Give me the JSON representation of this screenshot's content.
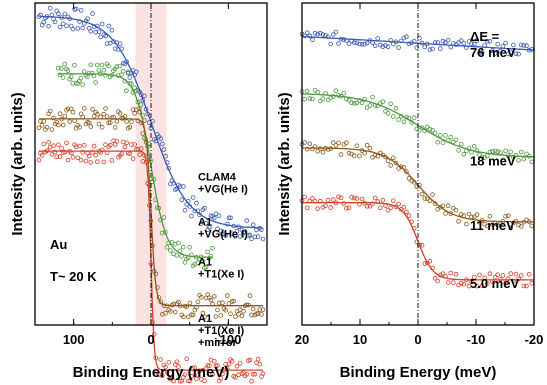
{
  "chart_data": [
    {
      "type": "scatter",
      "xlabel": "Binding Energy (meV)",
      "ylabel": "Intensity (arb. units)",
      "xlim": [
        150,
        -150
      ],
      "x_ticks": [
        "100",
        "0",
        "-100"
      ],
      "shaded_band": [
        20,
        -20
      ],
      "reference_line_x": 0,
      "annotations": [
        "Au",
        "T~ 20 K"
      ],
      "series": [
        {
          "name": "CLAM4\n+VG(He I)",
          "color": "#3b5bb5",
          "level_hi": 0.96,
          "level_lo": 0.3,
          "width": 24,
          "x_range": [
            145,
            -145
          ]
        },
        {
          "name": "A1\n+VG(He I)",
          "color": "#4e9a3e",
          "level_hi": 0.78,
          "level_lo": 0.21,
          "width": 10,
          "x_range": [
            120,
            -80
          ]
        },
        {
          "name": "A1\n+T1(Xe I)",
          "color": "#8b5a1e",
          "level_hi": 0.64,
          "level_lo": 0.06,
          "width": 3,
          "x_range": [
            145,
            -145
          ]
        },
        {
          "name": "A1\n+T1(Xe I)\n+mirror",
          "color": "#d6402b",
          "level_hi": 0.54,
          "level_lo": -0.14,
          "width": 2,
          "x_range": [
            145,
            -145
          ]
        }
      ]
    },
    {
      "type": "scatter",
      "xlabel": "Binding Energy (meV)",
      "ylabel": "Intensity (arb. units)",
      "xlim": [
        20,
        -20
      ],
      "x_ticks": [
        "20",
        "10",
        "0",
        "-10",
        "-20"
      ],
      "reference_line_x": 0,
      "series": [
        {
          "name": "ΔE =\n76 meV",
          "color": "#3b5bb5",
          "level_hi": 0.93,
          "level_lo": 0.82,
          "width": 25
        },
        {
          "name": "18 meV",
          "color": "#4e9a3e",
          "level_hi": 0.72,
          "level_lo": 0.52,
          "width": 4.5
        },
        {
          "name": "11 meV",
          "color": "#8b5a1e",
          "level_hi": 0.55,
          "level_lo": 0.32,
          "width": 2.8
        },
        {
          "name": "5.0 meV",
          "color": "#d6402b",
          "level_hi": 0.38,
          "level_lo": 0.14,
          "width": 1.3
        }
      ]
    }
  ]
}
